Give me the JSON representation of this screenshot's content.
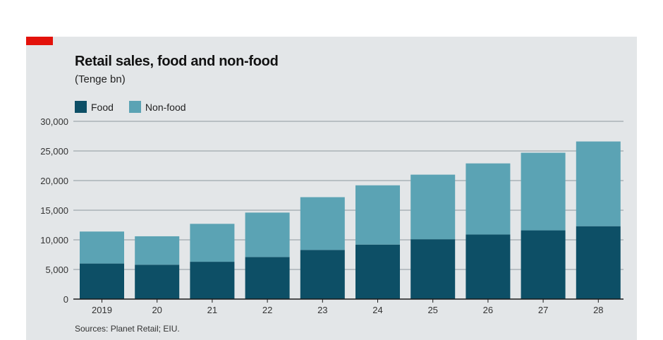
{
  "chart_data": {
    "type": "bar",
    "stacked": true,
    "title": "Retail sales, food and non-food",
    "subtitle": "(Tenge bn)",
    "categories": [
      "2019",
      "20",
      "21",
      "22",
      "23",
      "24",
      "25",
      "26",
      "27",
      "28"
    ],
    "series": [
      {
        "name": "Food",
        "color": "#0d4f66",
        "values": [
          6000,
          5800,
          6300,
          7100,
          8300,
          9200,
          10100,
          10900,
          11600,
          12300
        ]
      },
      {
        "name": "Non-food",
        "color": "#5ba3b4",
        "values": [
          5400,
          4800,
          6400,
          7500,
          8900,
          10000,
          10900,
          12000,
          13100,
          14300
        ]
      }
    ],
    "ylim": [
      0,
      30000
    ],
    "yticks": [
      0,
      5000,
      10000,
      15000,
      20000,
      25000,
      30000
    ],
    "ytick_labels": [
      "0",
      "5,000",
      "10,000",
      "15,000",
      "20,000",
      "25,000",
      "30,000"
    ],
    "grid": true,
    "legend": "top-left",
    "source": "Sources: Planet Retail; EIU."
  },
  "colors": {
    "panel": "#e3e6e8",
    "accent": "#e3120b",
    "grid": "#b8bfc3",
    "axis": "#1a1a1a"
  }
}
